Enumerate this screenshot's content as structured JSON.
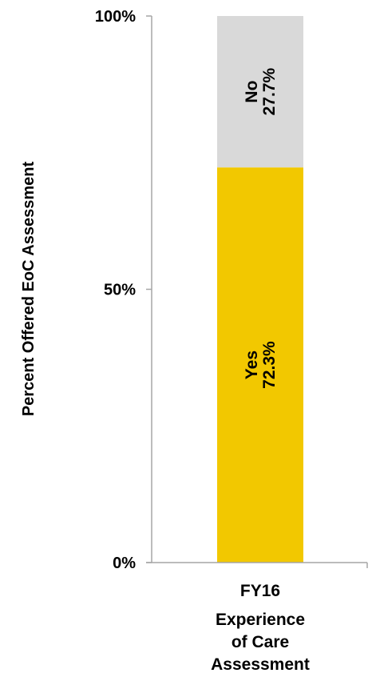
{
  "chart_data": {
    "type": "bar",
    "stacked": true,
    "categories": [
      "FY16"
    ],
    "category_sublabel": [
      "Experience",
      "of Care",
      "Assessment"
    ],
    "series": [
      {
        "name": "Yes",
        "values": [
          72.3
        ],
        "value_label": "72.3%",
        "color": "#F2C800"
      },
      {
        "name": "No",
        "values": [
          27.7
        ],
        "value_label": "27.7%",
        "color": "#D9D9D9"
      }
    ],
    "xlabel": "",
    "ylabel": "Percent Offered EoC Assessment",
    "ylim": [
      0,
      100
    ],
    "yticks": [
      {
        "value": 0,
        "label": "0%"
      },
      {
        "value": 50,
        "label": "50%"
      },
      {
        "value": 100,
        "label": "100%"
      }
    ],
    "grid": false,
    "legend": "none",
    "axis_color": "#A6A6A6"
  }
}
